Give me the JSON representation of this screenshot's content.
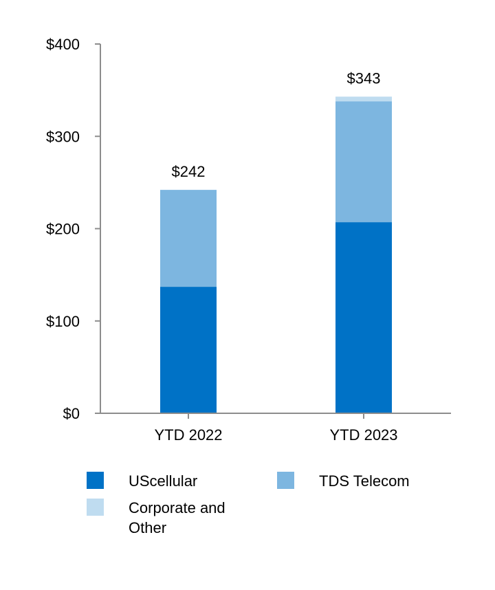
{
  "chart_data": {
    "type": "bar",
    "stacked": true,
    "title": "",
    "xlabel": "",
    "ylabel": "",
    "categories": [
      "YTD 2022",
      "YTD 2023"
    ],
    "series": [
      {
        "name": "UScellular",
        "values": [
          137,
          207
        ],
        "color": "#0072c6"
      },
      {
        "name": "TDS Telecom",
        "values": [
          105,
          131
        ],
        "color": "#7db6e0"
      },
      {
        "name": "Corporate and Other",
        "values": [
          0,
          5
        ],
        "color": "#bfdcf0"
      }
    ],
    "totals": [
      "$242",
      "$343"
    ],
    "ylim": [
      0,
      400
    ],
    "yticks": [
      0,
      100,
      200,
      300,
      400
    ],
    "ytick_labels": [
      "$0",
      "$100",
      "$200",
      "$300",
      "$400"
    ],
    "grid": false,
    "legend_position": "bottom"
  }
}
